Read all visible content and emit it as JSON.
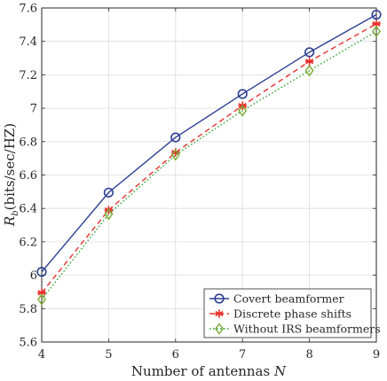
{
  "chart_data": {
    "type": "line",
    "xlabel": "Number of antennas N",
    "ylabel": "R_b(bits/sec/HZ)",
    "xlim": [
      4,
      9
    ],
    "ylim": [
      5.6,
      7.6
    ],
    "xticks": [
      4,
      5,
      6,
      7,
      8,
      9
    ],
    "yticks": [
      5.6,
      5.8,
      6.0,
      6.2,
      6.4,
      6.6,
      6.8,
      7.0,
      7.2,
      7.4,
      7.6
    ],
    "xtick_labels": [
      "4",
      "5",
      "6",
      "7",
      "8",
      "9"
    ],
    "ytick_labels": [
      "5.6",
      "5.8",
      "6",
      "6.2",
      "6.4",
      "6.6",
      "6.8",
      "7",
      "7.2",
      "7.4",
      "7.6"
    ],
    "grid": true,
    "legend_position": "bottom-right",
    "x": [
      4,
      5,
      6,
      7,
      8,
      9
    ],
    "series": [
      {
        "name": "Covert beamformer",
        "values": [
          6.02,
          6.495,
          6.825,
          7.085,
          7.335,
          7.56
        ],
        "color": "#2c3e93",
        "line_style": "solid",
        "marker": "circle"
      },
      {
        "name": "Discrete phase shifts",
        "values": [
          5.895,
          6.39,
          6.735,
          7.015,
          7.28,
          7.505
        ],
        "color": "#e8302b",
        "line_style": "dashed",
        "marker": "asterisk"
      },
      {
        "name": "Without IRS beamformers",
        "values": [
          5.855,
          6.365,
          6.72,
          6.985,
          7.225,
          7.46
        ],
        "color": "#2ca02c",
        "marker_color": "#77ac30",
        "line_style": "dotted",
        "marker": "diamond"
      }
    ]
  }
}
